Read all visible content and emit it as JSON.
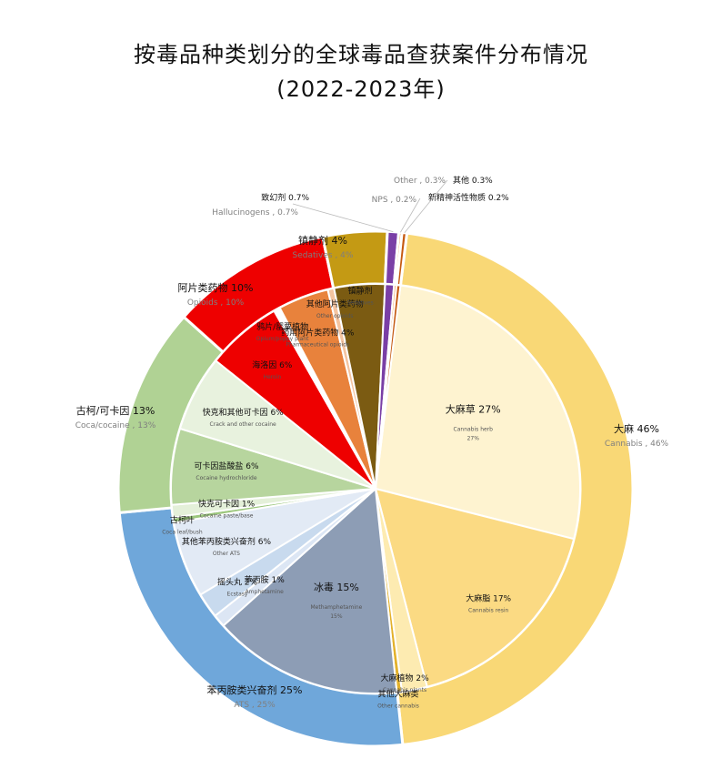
{
  "title_line1": "按毒品种类划分的全球毒品查获案件分布情况",
  "title_line2": "(2022-2023年)",
  "chart_data": {
    "type": "pie",
    "subtype": "sunburst",
    "outer_ring": [
      {
        "zh": "大麻",
        "en": "Cannabis",
        "value": 46,
        "pct_label": "46%",
        "color": "#F9D876"
      },
      {
        "zh": "苯丙胺类兴奋剂",
        "en": "ATS",
        "value": 25,
        "pct_label": "25%",
        "color": "#6FA7DA"
      },
      {
        "zh": "古柯/可卡因",
        "en": "Coca/cocaine",
        "value": 13,
        "pct_label": "13%",
        "color": "#B0D294"
      },
      {
        "zh": "阿片类药物",
        "en": "Opioids",
        "value": 10,
        "pct_label": "10%",
        "color": "#EE0000"
      },
      {
        "zh": "镇静剂",
        "en": "Sedatives",
        "value": 4,
        "pct_label": "4%",
        "color": "#C49A14"
      },
      {
        "zh": "致幻剂",
        "en": "Hallucinogens",
        "value": 0.7,
        "pct_label": "0.7%",
        "color": "#7A3FA6"
      },
      {
        "zh": "新精神活性物质",
        "en": "NPS",
        "value": 0.2,
        "pct_label": "0.2%",
        "color": "#F0A868"
      },
      {
        "zh": "其他",
        "en": "Other",
        "value": 0.3,
        "pct_label": "0.3%",
        "color": "#C55A11"
      }
    ],
    "inner_ring": [
      {
        "zh": "大麻草",
        "en": "Cannabis herb",
        "value": 27,
        "pct_label": "27%",
        "color": "#FEF3D0"
      },
      {
        "zh": "大麻脂",
        "en": "Cannabis resin",
        "value": 17,
        "pct_label": "17%",
        "color": "#FBDA83"
      },
      {
        "zh": "大麻植物",
        "en": "Cannabis plants",
        "value": 2,
        "pct_label": "2%",
        "color": "#FDEBB1"
      },
      {
        "zh": "其他大麻类",
        "en": "Other cannabis",
        "value": 0.4,
        "pct_label": "",
        "color": "#E3B12B"
      },
      {
        "zh": "冰毒",
        "en": "Methamphetamine",
        "value": 15,
        "pct_label": "15%",
        "color": "#8D9DB5"
      },
      {
        "zh": "苯丙胺",
        "en": "Amphetamine",
        "value": 1,
        "pct_label": "1%",
        "color": "#DCE6F4"
      },
      {
        "zh": "摇头丸",
        "en": "Ecstasy",
        "value": 2,
        "pct_label": "2%",
        "color": "#C8DAEE"
      },
      {
        "zh": "其他苯丙胺类兴奋剂",
        "en": "Other ATS",
        "value": 6,
        "pct_label": "6%",
        "color": "#E2EAF5"
      },
      {
        "zh": "古柯叶",
        "en": "Coca leaf/bush",
        "value": 0.4,
        "pct_label": "",
        "color": "#9CC77D"
      },
      {
        "zh": "快克可卡因",
        "en": "Cocaine paste/base",
        "value": 1,
        "pct_label": "1%",
        "color": "#E4F0D9"
      },
      {
        "zh": "可卡因盐酸盐",
        "en": "Cocaine hydrochloride",
        "value": 6,
        "pct_label": "6%",
        "color": "#B7D59E"
      },
      {
        "zh": "快克和其他可卡因",
        "en": "Crack and other cocaine",
        "value": 6,
        "pct_label": "6%",
        "color": "#E8F2DE"
      },
      {
        "zh": "海洛因",
        "en": "Heroin",
        "value": 6,
        "pct_label": "6%",
        "color": "#EE0000"
      },
      {
        "zh": "鸦片/罂粟植物",
        "en": "Opium/poppy plant",
        "value": 0.5,
        "pct_label": "",
        "color": "#FFFFFF"
      },
      {
        "zh": "药用阿片类药物",
        "en": "Pharmaceutical opioids",
        "value": 4,
        "pct_label": "4%",
        "color": "#E8823C"
      },
      {
        "zh": "其他阿片类药物",
        "en": "Other opioids",
        "value": 0.5,
        "pct_label": "",
        "color": "#F4C4A0"
      },
      {
        "zh": "镇静剂",
        "en": "Sedatives",
        "value": 4,
        "pct_label": "",
        "color": "#7B5B12"
      },
      {
        "zh": "致幻剂",
        "en": "Hallucinogens",
        "value": 0.7,
        "pct_label": "",
        "color": "#7A3FA6"
      },
      {
        "zh": "新精神活性物质",
        "en": "NPS",
        "value": 0.2,
        "pct_label": "",
        "color": "#F0A868"
      },
      {
        "zh": "其他",
        "en": "Other",
        "value": 0.3,
        "pct_label": "",
        "color": "#C55A11"
      }
    ],
    "extra_labels": {
      "opioids_inner_zh": "鸦片/罂粟植物",
      "hallucinogens_zh": "致幻剂 0.7%",
      "hallucinogens_en": "Hallucinogens , 0.7%",
      "other_zh": "其他 0.3%",
      "other_en": "Other , 0.3%",
      "nps_zh": "新精神活性物质 0.2%",
      "nps_en": "NPS , 0.2%"
    }
  }
}
